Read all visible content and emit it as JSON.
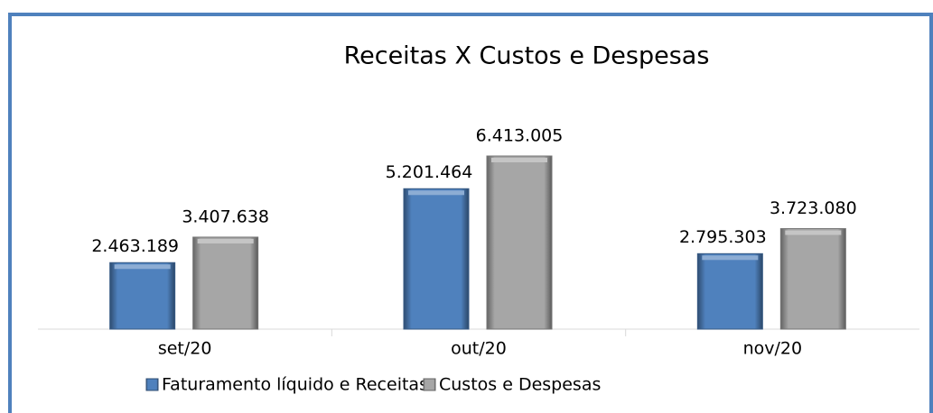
{
  "chart_data": {
    "type": "bar",
    "title": "Receitas X Custos e Despesas",
    "categories": [
      "set/20",
      "out/20",
      "nov/20"
    ],
    "series": [
      {
        "name": "Faturamento líquido e Receitas",
        "color": "#4f81bd",
        "values": [
          2463189,
          5201464,
          2795303
        ],
        "value_labels": [
          "2.463.189",
          "5.201.464",
          "2.795.303"
        ]
      },
      {
        "name": "Custos e Despesas",
        "color": "#a6a6a6",
        "values": [
          3407638,
          6413005,
          3723080
        ],
        "value_labels": [
          "3.407.638",
          "6.413.005",
          "3.723.080"
        ]
      }
    ],
    "legend": "bottom"
  }
}
